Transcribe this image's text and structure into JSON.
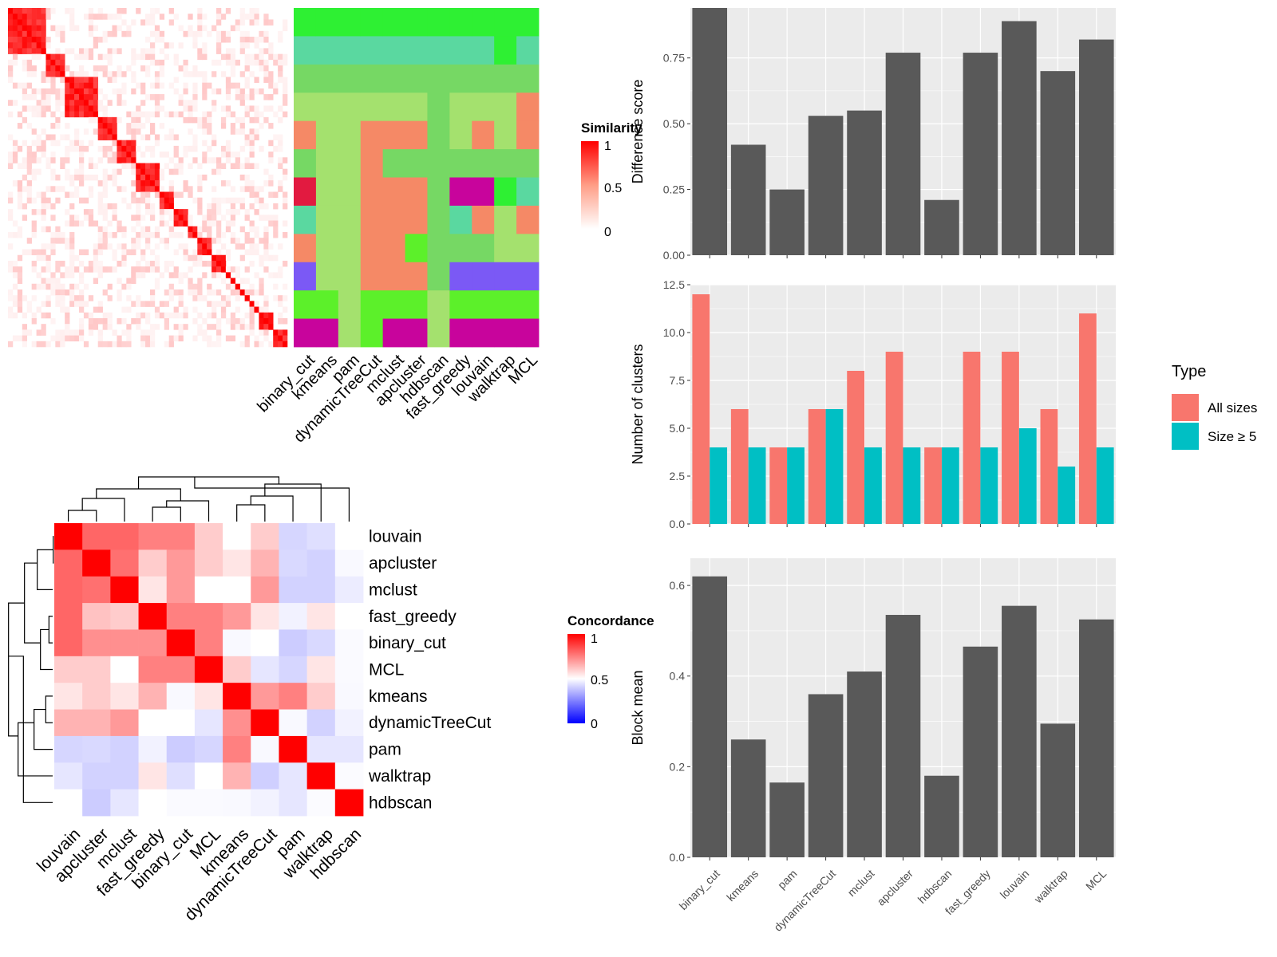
{
  "methods": [
    "binary_cut",
    "kmeans",
    "pam",
    "dynamicTreeCut",
    "mclust",
    "apcluster",
    "hdbscan",
    "fast_greedy",
    "louvain",
    "walktrap",
    "MCL"
  ],
  "similarity_panel": {
    "legend_title": "Similarity",
    "legend_ticks": [
      "1",
      "0.5",
      "0"
    ],
    "block_sizes": [
      8,
      4,
      7,
      4,
      4,
      5,
      3,
      3,
      2,
      3,
      3,
      1,
      1,
      1,
      1,
      1,
      1,
      1,
      3,
      3
    ],
    "assignment_colors": {
      "binary_cut": [
        "#2ef033",
        "#5ad8a0",
        "#76d864",
        "#a4e16e",
        "#f58966",
        "#76d864",
        "#e21a40",
        "#5ad8a0",
        "#f58966",
        "#7b59f5",
        "#5cf02a",
        "#c8049c"
      ],
      "kmeans": [
        "#2ef033",
        "#5ad8a0",
        "#76d864",
        "#a4e16e",
        "#a4e16e",
        "#a4e16e",
        "#a4e16e",
        "#a4e16e",
        "#a4e16e",
        "#a4e16e",
        "#5cf02a",
        "#c8049c"
      ],
      "pam": [
        "#2ef033",
        "#5ad8a0",
        "#76d864",
        "#a4e16e",
        "#a4e16e",
        "#a4e16e",
        "#a4e16e",
        "#a4e16e",
        "#a4e16e",
        "#a4e16e",
        "#a4e16e",
        "#a4e16e"
      ],
      "dynamicTreeCut": [
        "#2ef033",
        "#5ad8a0",
        "#76d864",
        "#a4e16e",
        "#f58966",
        "#f58966",
        "#f58966",
        "#f58966",
        "#f58966",
        "#f58966",
        "#5cf02a",
        "#5cf02a"
      ],
      "mclust": [
        "#2ef033",
        "#5ad8a0",
        "#76d864",
        "#a4e16e",
        "#f58966",
        "#76d864",
        "#f58966",
        "#f58966",
        "#f58966",
        "#f58966",
        "#5cf02a",
        "#c8049c"
      ],
      "apcluster": [
        "#2ef033",
        "#5ad8a0",
        "#76d864",
        "#a4e16e",
        "#f58966",
        "#76d864",
        "#f58966",
        "#f58966",
        "#5cf02a",
        "#f58966",
        "#5cf02a",
        "#c8049c"
      ],
      "hdbscan": [
        "#2ef033",
        "#5ad8a0",
        "#76d864",
        "#76d864",
        "#76d864",
        "#76d864",
        "#76d864",
        "#76d864",
        "#76d864",
        "#76d864",
        "#a4e16e",
        "#a4e16e"
      ],
      "fast_greedy": [
        "#2ef033",
        "#5ad8a0",
        "#76d864",
        "#a4e16e",
        "#a4e16e",
        "#76d864",
        "#c8049c",
        "#5ad8a0",
        "#76d864",
        "#7b59f5",
        "#5cf02a",
        "#c8049c"
      ],
      "louvain": [
        "#2ef033",
        "#5ad8a0",
        "#76d864",
        "#a4e16e",
        "#f58966",
        "#76d864",
        "#c8049c",
        "#f58966",
        "#76d864",
        "#7b59f5",
        "#5cf02a",
        "#c8049c"
      ],
      "walktrap": [
        "#2ef033",
        "#2ef033",
        "#76d864",
        "#a4e16e",
        "#a4e16e",
        "#76d864",
        "#2ef033",
        "#a4e16e",
        "#a4e16e",
        "#7b59f5",
        "#5cf02a",
        "#c8049c"
      ],
      "MCL": [
        "#2ef033",
        "#5ad8a0",
        "#76d864",
        "#f58966",
        "#f58966",
        "#76d864",
        "#5ad8a0",
        "#f58966",
        "#a4e16e",
        "#7b59f5",
        "#5cf02a",
        "#c8049c"
      ]
    }
  },
  "concordance_panel": {
    "legend_title": "Concordance",
    "legend_ticks": [
      "1",
      "0.5",
      "0"
    ],
    "order": [
      "louvain",
      "apcluster",
      "mclust",
      "fast_greedy",
      "binary_cut",
      "MCL",
      "kmeans",
      "dynamicTreeCut",
      "pam",
      "walktrap",
      "hdbscan"
    ],
    "matrix": [
      [
        1.0,
        0.8,
        0.8,
        0.75,
        0.75,
        0.6,
        0.5,
        0.6,
        0.18,
        0.25,
        0.5
      ],
      [
        0.8,
        1.0,
        0.78,
        0.6,
        0.7,
        0.6,
        0.55,
        0.65,
        0.2,
        0.15,
        0.45
      ],
      [
        0.8,
        0.78,
        1.0,
        0.55,
        0.7,
        0.5,
        0.5,
        0.7,
        0.15,
        0.15,
        0.35
      ],
      [
        0.8,
        0.62,
        0.6,
        1.0,
        0.75,
        0.75,
        0.7,
        0.55,
        0.4,
        0.55,
        0.5
      ],
      [
        0.8,
        0.72,
        0.72,
        0.72,
        1.0,
        0.75,
        0.45,
        0.5,
        0.1,
        0.2,
        0.46
      ],
      [
        0.6,
        0.6,
        0.5,
        0.75,
        0.75,
        1.0,
        0.6,
        0.3,
        0.18,
        0.55,
        0.46
      ],
      [
        0.55,
        0.6,
        0.55,
        0.65,
        0.45,
        0.55,
        1.0,
        0.7,
        0.75,
        0.6,
        0.45
      ],
      [
        0.65,
        0.65,
        0.7,
        0.5,
        0.5,
        0.3,
        0.72,
        1.0,
        0.45,
        0.15,
        0.4
      ],
      [
        0.18,
        0.2,
        0.15,
        0.4,
        0.1,
        0.18,
        0.75,
        0.45,
        1.0,
        0.3,
        0.3
      ],
      [
        0.3,
        0.15,
        0.15,
        0.55,
        0.25,
        0.5,
        0.65,
        0.12,
        0.3,
        1.0,
        0.47
      ],
      [
        0.5,
        0.1,
        0.3,
        0.5,
        0.46,
        0.46,
        0.45,
        0.4,
        0.3,
        0.47,
        1.0
      ]
    ]
  },
  "chart_data": [
    {
      "type": "bar",
      "categories": [
        "binary_cut",
        "kmeans",
        "pam",
        "dynamicTreeCut",
        "mclust",
        "apcluster",
        "hdbscan",
        "fast_greedy",
        "louvain",
        "walktrap",
        "MCL"
      ],
      "values": [
        0.94,
        0.42,
        0.25,
        0.53,
        0.55,
        0.77,
        0.21,
        0.77,
        0.89,
        0.7,
        0.82
      ],
      "ylabel": "Difference score",
      "ylim": [
        0,
        0.94
      ],
      "yticks": [
        "0.00",
        "0.25",
        "0.50",
        "0.75"
      ],
      "color": "#595959"
    },
    {
      "type": "bar",
      "categories": [
        "binary_cut",
        "kmeans",
        "pam",
        "dynamicTreeCut",
        "mclust",
        "apcluster",
        "hdbscan",
        "fast_greedy",
        "louvain",
        "walktrap",
        "MCL"
      ],
      "series": [
        {
          "name": "All sizes",
          "values": [
            12,
            6,
            4,
            6,
            8,
            9,
            4,
            9,
            9,
            6,
            11
          ],
          "color": "#f8766d"
        },
        {
          "name": "Size ≥ 5",
          "values": [
            4,
            4,
            4,
            6,
            4,
            4,
            4,
            4,
            5,
            3,
            4
          ],
          "color": "#00bfc4"
        }
      ],
      "ylabel": "Number of clusters",
      "ylim": [
        0,
        12.5
      ],
      "yticks": [
        "0.0",
        "2.5",
        "5.0",
        "7.5",
        "10.0",
        "12.5"
      ],
      "legend_title": "Type",
      "legend_position": "right"
    },
    {
      "type": "bar",
      "categories": [
        "binary_cut",
        "kmeans",
        "pam",
        "dynamicTreeCut",
        "mclust",
        "apcluster",
        "hdbscan",
        "fast_greedy",
        "louvain",
        "walktrap",
        "MCL"
      ],
      "values": [
        0.62,
        0.26,
        0.165,
        0.36,
        0.41,
        0.535,
        0.18,
        0.465,
        0.555,
        0.295,
        0.525
      ],
      "ylabel": "Block mean",
      "ylim": [
        0,
        0.62
      ],
      "yticks": [
        "0.0",
        "0.2",
        "0.4",
        "0.6"
      ],
      "color": "#595959"
    }
  ]
}
